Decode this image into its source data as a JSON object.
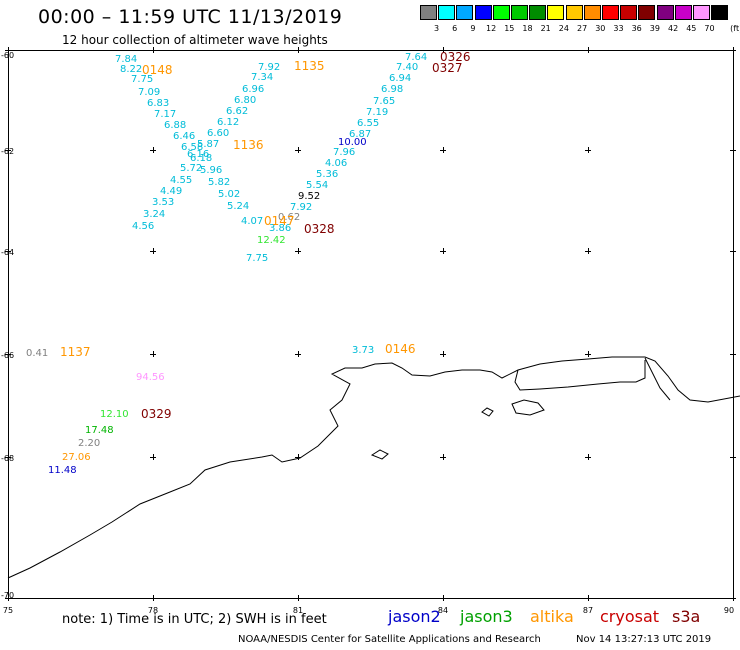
{
  "header": {
    "title": "00:00 – 11:59 UTC 11/13/2019",
    "subtitle": "12 hour collection of altimeter wave heights"
  },
  "scale": {
    "unit": "(ft)",
    "bins": [
      {
        "label": "3",
        "color": "#808080"
      },
      {
        "label": "6",
        "color": "#00ffff"
      },
      {
        "label": "9",
        "color": "#00a8ff"
      },
      {
        "label": "12",
        "color": "#0000ff"
      },
      {
        "label": "15",
        "color": "#00ff00"
      },
      {
        "label": "18",
        "color": "#00c800"
      },
      {
        "label": "21",
        "color": "#008c00"
      },
      {
        "label": "24",
        "color": "#ffff00"
      },
      {
        "label": "27",
        "color": "#ffc800"
      },
      {
        "label": "30",
        "color": "#ff8c00"
      },
      {
        "label": "33",
        "color": "#ff0000"
      },
      {
        "label": "36",
        "color": "#c80000"
      },
      {
        "label": "39",
        "color": "#800000"
      },
      {
        "label": "42",
        "color": "#800080"
      },
      {
        "label": "45",
        "color": "#c800c8"
      },
      {
        "label": "70",
        "color": "#ff96ff"
      },
      {
        "label": "",
        "color": "#000000"
      }
    ]
  },
  "axes": {
    "lat_labels": [
      "-60",
      "-62",
      "-64",
      "-66",
      "-68",
      "-70"
    ],
    "lon_labels": [
      "75",
      "78",
      "81",
      "84",
      "87",
      "90"
    ]
  },
  "observations": [
    {
      "text": "7.84",
      "color": "#00bcd8"
    },
    {
      "text": "8.22",
      "color": "#00bcd8"
    },
    {
      "text": "7.75",
      "color": "#00bcd8"
    },
    {
      "text": "7.09",
      "color": "#00bcd8"
    },
    {
      "text": "6.83",
      "color": "#00bcd8"
    },
    {
      "text": "7.17",
      "color": "#00bcd8"
    },
    {
      "text": "6.88",
      "color": "#00bcd8"
    },
    {
      "text": "6.46",
      "color": "#00bcd8"
    },
    {
      "text": "6.58",
      "color": "#00bcd8"
    },
    {
      "text": "6.16",
      "color": "#00bcd8"
    },
    {
      "text": "6.18",
      "color": "#00bcd8"
    },
    {
      "text": "5.72",
      "color": "#00bcd8"
    },
    {
      "text": "4.55",
      "color": "#00bcd8"
    },
    {
      "text": "4.49",
      "color": "#00bcd8"
    },
    {
      "text": "3.53",
      "color": "#00bcd8"
    },
    {
      "text": "3.24",
      "color": "#00bcd8"
    },
    {
      "text": "4.56",
      "color": "#00bcd8"
    },
    {
      "text": "7.92",
      "color": "#00bcd8"
    },
    {
      "text": "7.34",
      "color": "#00bcd8"
    },
    {
      "text": "6.96",
      "color": "#00bcd8"
    },
    {
      "text": "6.80",
      "color": "#00bcd8"
    },
    {
      "text": "6.62",
      "color": "#00bcd8"
    },
    {
      "text": "6.12",
      "color": "#00bcd8"
    },
    {
      "text": "6.60",
      "color": "#00bcd8"
    },
    {
      "text": "5.87",
      "color": "#00bcd8"
    },
    {
      "text": "5.96",
      "color": "#00bcd8"
    },
    {
      "text": "5.82",
      "color": "#00bcd8"
    },
    {
      "text": "5.02",
      "color": "#00bcd8"
    },
    {
      "text": "5.24",
      "color": "#00bcd8"
    },
    {
      "text": "4.07",
      "color": "#00bcd8"
    },
    {
      "text": "12.42",
      "color": "#32e632"
    },
    {
      "text": "7.75",
      "color": "#00bcd8"
    },
    {
      "text": "3.86",
      "color": "#00bcd8"
    },
    {
      "text": "0.62",
      "color": "#808080"
    },
    {
      "text": "7.64",
      "color": "#00bcd8"
    },
    {
      "text": "7.40",
      "color": "#00bcd8"
    },
    {
      "text": "6.94",
      "color": "#00bcd8"
    },
    {
      "text": "6.98",
      "color": "#00bcd8"
    },
    {
      "text": "7.65",
      "color": "#00bcd8"
    },
    {
      "text": "7.19",
      "color": "#00bcd8"
    },
    {
      "text": "6.55",
      "color": "#00bcd8"
    },
    {
      "text": "6.87",
      "color": "#00bcd8"
    },
    {
      "text": "10.00",
      "color": "#0000c8"
    },
    {
      "text": "7.96",
      "color": "#00bcd8"
    },
    {
      "text": "4.06",
      "color": "#00bcd8"
    },
    {
      "text": "5.36",
      "color": "#00bcd8"
    },
    {
      "text": "5.54",
      "color": "#00bcd8"
    },
    {
      "text": "9.52",
      "color": "#000000"
    },
    {
      "text": "7.92",
      "color": "#00bcd8"
    },
    {
      "text": "0.41",
      "color": "#808080"
    },
    {
      "text": "3.73",
      "color": "#00bcd8"
    },
    {
      "text": "94.56",
      "color": "#ff96ff"
    },
    {
      "text": "12.10",
      "color": "#32e632"
    },
    {
      "text": "17.48",
      "color": "#00b400"
    },
    {
      "text": "2.20",
      "color": "#808080"
    },
    {
      "text": "27.06",
      "color": "#ff9600"
    },
    {
      "text": "11.48",
      "color": "#0000c8"
    }
  ],
  "pass_times": [
    {
      "text": "0148",
      "color": "#ff9600"
    },
    {
      "text": "1135",
      "color": "#ff9600"
    },
    {
      "text": "0326",
      "color": "#800000"
    },
    {
      "text": "0327",
      "color": "#800000"
    },
    {
      "text": "1136",
      "color": "#ff9600"
    },
    {
      "text": "0147",
      "color": "#ff9600"
    },
    {
      "text": "0328",
      "color": "#800000"
    },
    {
      "text": "1137",
      "color": "#ff9600"
    },
    {
      "text": "0146",
      "color": "#ff9600"
    },
    {
      "text": "0329",
      "color": "#800000"
    }
  ],
  "footer": {
    "note": "note: 1) Time is in UTC; 2) SWH is in feet",
    "missions": [
      {
        "label": "jason2",
        "color": "#0000c8"
      },
      {
        "label": "jason3",
        "color": "#00a000"
      },
      {
        "label": "altika",
        "color": "#ff9600"
      },
      {
        "label": "cryosat",
        "color": "#c80000"
      },
      {
        "label": "s3a",
        "color": "#800000"
      }
    ],
    "credit": "NOAA/NESDIS Center for Satellite Applications and Research",
    "timestamp": "Nov 14 13:27:13 UTC 2019"
  }
}
